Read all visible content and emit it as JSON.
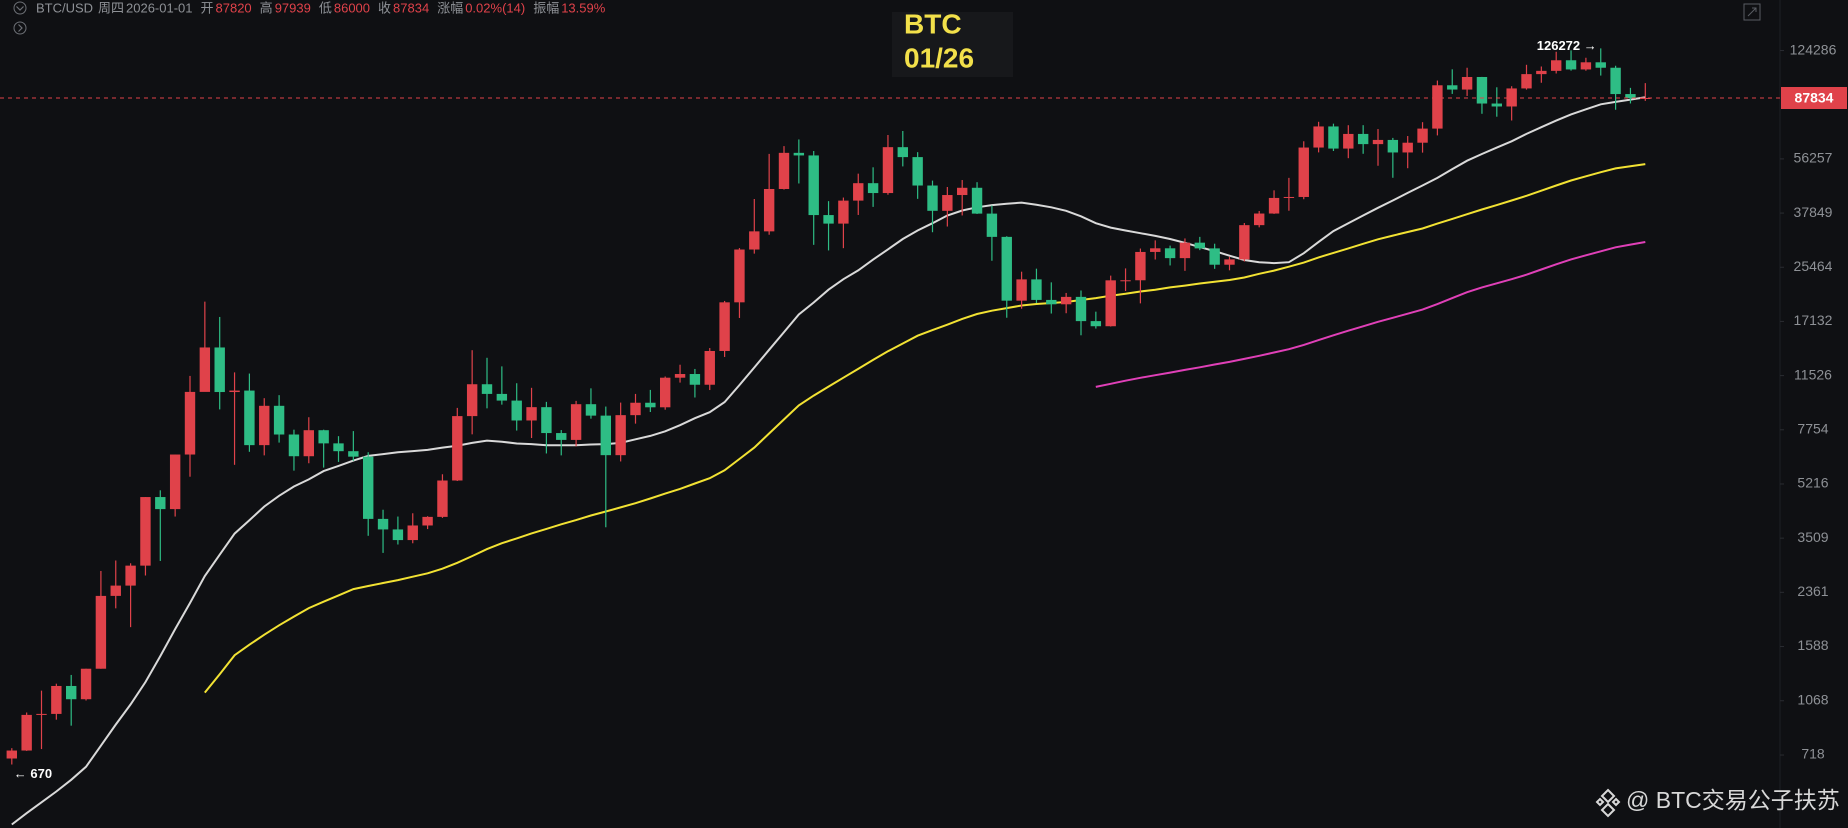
{
  "header": {
    "symbol": "BTC/USD",
    "weekday": "周四",
    "date": "2026-01-01",
    "fields": [
      {
        "label": "开",
        "value": 87820
      },
      {
        "label": "高",
        "value": 97939
      },
      {
        "label": "低",
        "value": 86000
      },
      {
        "label": "收",
        "value": 87834
      },
      {
        "label": "涨幅",
        "value": "0.02%(14)"
      },
      {
        "label": "振幅",
        "value": "13.59%"
      }
    ]
  },
  "overlay": {
    "line1": "BTC",
    "line2": "01/26"
  },
  "watermark": "@ BTC交易公子扶苏",
  "chart_data": {
    "type": "candlestick",
    "log_scale": true,
    "ylim": [
      421,
      179900
    ],
    "yticks": [
      718,
      1068,
      1588,
      2361,
      3509,
      5216,
      7754,
      11526,
      17132,
      25464,
      37849,
      56257,
      124286
    ],
    "up_color": "#e0424a",
    "down_color": "#2ebd85",
    "last_price": 87834,
    "last_price_color": "#e0424a",
    "max_label": "126272 →",
    "min_label": "← 670",
    "ohlc": [
      [
        700,
        755,
        670,
        742
      ],
      [
        742,
        980,
        740,
        963
      ],
      [
        963,
        1150,
        750,
        970
      ],
      [
        970,
        1210,
        930,
        1190
      ],
      [
        1190,
        1290,
        890,
        1080
      ],
      [
        1080,
        1350,
        1070,
        1350
      ],
      [
        1350,
        2760,
        1350,
        2300
      ],
      [
        2300,
        2980,
        2100,
        2480
      ],
      [
        2480,
        2920,
        1830,
        2870
      ],
      [
        2870,
        4740,
        2670,
        4740
      ],
      [
        4740,
        4980,
        2970,
        4340
      ],
      [
        4340,
        6470,
        4110,
        6470
      ],
      [
        6470,
        11500,
        5500,
        10230
      ],
      [
        10230,
        19800,
        10800,
        14160
      ],
      [
        14160,
        17700,
        9000,
        10220
      ],
      [
        10220,
        11800,
        6000,
        10330
      ],
      [
        10330,
        11700,
        6600,
        6930
      ],
      [
        6930,
        9770,
        6430,
        9240
      ],
      [
        9240,
        9990,
        7060,
        7490
      ],
      [
        7490,
        7760,
        5750,
        6390
      ],
      [
        6390,
        8500,
        6070,
        7730
      ],
      [
        7730,
        7760,
        5880,
        7020
      ],
      [
        7020,
        7400,
        6130,
        6630
      ],
      [
        6630,
        7680,
        6180,
        6370
      ],
      [
        6370,
        6580,
        3570,
        4040
      ],
      [
        4040,
        4320,
        3150,
        3740
      ],
      [
        3740,
        4110,
        3350,
        3460
      ],
      [
        3460,
        4210,
        3380,
        3850
      ],
      [
        3850,
        4120,
        3750,
        4100
      ],
      [
        4100,
        5600,
        4070,
        5350
      ],
      [
        5350,
        9100,
        5330,
        8570
      ],
      [
        8570,
        13880,
        7500,
        10820
      ],
      [
        10820,
        13130,
        9070,
        10080
      ],
      [
        10080,
        12330,
        9320,
        9600
      ],
      [
        9600,
        10900,
        7710,
        8300
      ],
      [
        8300,
        10540,
        7300,
        9150
      ],
      [
        9150,
        9510,
        6520,
        7570
      ],
      [
        7570,
        7740,
        6430,
        7200
      ],
      [
        7200,
        9580,
        6870,
        9350
      ],
      [
        9350,
        10500,
        8410,
        8600
      ],
      [
        8600,
        9190,
        3800,
        6440
      ],
      [
        6440,
        9460,
        6150,
        8630
      ],
      [
        8630,
        10080,
        8110,
        9450
      ],
      [
        9450,
        10380,
        8830,
        9140
      ],
      [
        9140,
        11450,
        8980,
        11350
      ],
      [
        11350,
        12480,
        10950,
        11660
      ],
      [
        11660,
        12100,
        9820,
        10780
      ],
      [
        10780,
        14100,
        10370,
        13800
      ],
      [
        13800,
        19900,
        13210,
        19700
      ],
      [
        19700,
        29300,
        17570,
        28990
      ],
      [
        28990,
        41950,
        28130,
        33110
      ],
      [
        33110,
        58350,
        32300,
        45140
      ],
      [
        45140,
        61780,
        44950,
        58800
      ],
      [
        58800,
        64850,
        47000,
        57700
      ],
      [
        57700,
        59600,
        30000,
        37300
      ],
      [
        37300,
        41300,
        28800,
        35040
      ],
      [
        35040,
        42400,
        29280,
        41460
      ],
      [
        41460,
        50500,
        37330,
        47100
      ],
      [
        47100,
        52900,
        39600,
        43820
      ],
      [
        43820,
        67000,
        43280,
        61300
      ],
      [
        61300,
        69000,
        53250,
        57000
      ],
      [
        57000,
        59100,
        42000,
        46300
      ],
      [
        46300,
        48000,
        32900,
        38480
      ],
      [
        38480,
        45800,
        34300,
        43190
      ],
      [
        43190,
        48200,
        37200,
        45540
      ],
      [
        45540,
        47450,
        37600,
        37700
      ],
      [
        37700,
        40000,
        26700,
        31800
      ],
      [
        31800,
        31950,
        17600,
        19940
      ],
      [
        19940,
        24650,
        18800,
        23300
      ],
      [
        23300,
        25200,
        19600,
        20050
      ],
      [
        20050,
        22800,
        18150,
        19420
      ],
      [
        19420,
        21100,
        18190,
        20500
      ],
      [
        20500,
        21480,
        15480,
        17170
      ],
      [
        17170,
        18400,
        16260,
        16540
      ],
      [
        16540,
        23950,
        16500,
        23140
      ],
      [
        23140,
        25250,
        21400,
        23150
      ],
      [
        23150,
        29200,
        19550,
        28480
      ],
      [
        28480,
        31000,
        26950,
        29250
      ],
      [
        29250,
        29830,
        25800,
        27220
      ],
      [
        27220,
        31440,
        24800,
        30480
      ],
      [
        30480,
        31800,
        28860,
        29230
      ],
      [
        29230,
        30250,
        25170,
        25940
      ],
      [
        25940,
        27480,
        24900,
        26970
      ],
      [
        26970,
        35200,
        26560,
        34650
      ],
      [
        34650,
        38430,
        34100,
        37720
      ],
      [
        37720,
        44700,
        37620,
        42280
      ],
      [
        42280,
        48970,
        38500,
        42580
      ],
      [
        42580,
        64000,
        41880,
        61130
      ],
      [
        61130,
        73800,
        59000,
        71330
      ],
      [
        71330,
        72800,
        59600,
        60670
      ],
      [
        60670,
        71980,
        56550,
        67530
      ],
      [
        67530,
        72000,
        58400,
        62680
      ],
      [
        62680,
        70000,
        53500,
        64630
      ],
      [
        64630,
        65600,
        49000,
        58970
      ],
      [
        58970,
        66500,
        52550,
        63330
      ],
      [
        63330,
        73600,
        58900,
        70220
      ],
      [
        70220,
        99800,
        66800,
        96400
      ],
      [
        96400,
        108350,
        90500,
        93430
      ],
      [
        93430,
        109590,
        89160,
        102430
      ],
      [
        102430,
        102500,
        78250,
        84350
      ],
      [
        84350,
        95000,
        76600,
        82550
      ],
      [
        82550,
        95750,
        74500,
        94200
      ],
      [
        94200,
        111980,
        93400,
        104600
      ],
      [
        104600,
        110600,
        98200,
        107130
      ],
      [
        107130,
        123200,
        105100,
        115760
      ],
      [
        115760,
        124460,
        107300,
        108240
      ],
      [
        108240,
        117900,
        107250,
        114050
      ],
      [
        114050,
        126272,
        103500,
        109600
      ],
      [
        109600,
        111200,
        80600,
        90400
      ],
      [
        90400,
        94600,
        84400,
        87800
      ],
      [
        87820,
        97939,
        86000,
        87834
      ]
    ],
    "series": [
      {
        "color": "#d9d9d9",
        "values": [
          432,
          469,
          508,
          550,
          599,
          659,
          769,
          898,
          1040,
          1225,
          1481,
          1805,
          2183,
          2661,
          3108,
          3628,
          4002,
          4423,
          4782,
          5121,
          5392,
          5730,
          5952,
          6189,
          6405,
          6491,
          6577,
          6634,
          6692,
          6807,
          6900,
          7044,
          7166,
          7108,
          7015,
          6985,
          6922,
          6922,
          6922,
          6960,
          6985,
          7044,
          7230,
          7417,
          7668,
          8020,
          8437,
          8817,
          9492,
          10748,
          12228,
          13922,
          15846,
          18022,
          19673,
          21612,
          23335,
          24886,
          26925,
          29007,
          31305,
          33315,
          35153,
          37192,
          38557,
          39490,
          40136,
          40495,
          40860,
          40208,
          39490,
          38485,
          36977,
          35153,
          34033,
          33315,
          32669,
          32023,
          31305,
          30443,
          29510,
          28648,
          27715,
          26853,
          26422,
          26243,
          26422,
          28217,
          30659,
          33172,
          35110,
          37192,
          39346,
          41500,
          43870,
          46311,
          48968,
          52199,
          55501,
          58302,
          61102,
          63974,
          67564,
          70938,
          74457,
          77903,
          80847,
          83862,
          85370,
          86806,
          88314
        ]
      },
      {
        "color": "#f2e233",
        "values": [
          null,
          null,
          null,
          null,
          null,
          null,
          null,
          null,
          null,
          null,
          null,
          null,
          null,
          1134,
          1297,
          1490,
          1609,
          1731,
          1855,
          1977,
          2104,
          2204,
          2309,
          2417,
          2473,
          2527,
          2582,
          2647,
          2714,
          2807,
          2930,
          3077,
          3238,
          3382,
          3504,
          3633,
          3755,
          3884,
          4006,
          4143,
          4265,
          4394,
          4531,
          4689,
          4861,
          5033,
          5234,
          5442,
          5766,
          6261,
          6807,
          7546,
          8365,
          9269,
          9959,
          10633,
          11352,
          12105,
          12931,
          13771,
          14575,
          15437,
          16083,
          16729,
          17447,
          18094,
          18524,
          18883,
          19242,
          19458,
          19601,
          19745,
          20032,
          20319,
          20678,
          20966,
          21325,
          21612,
          21971,
          22258,
          22617,
          22904,
          23191,
          23622,
          24268,
          24843,
          25561,
          26351,
          27356,
          28289,
          29223,
          30228,
          31233,
          32095,
          32956,
          33818,
          35038,
          36259,
          37551,
          38844,
          40136,
          41500,
          42936,
          44588,
          46311,
          48034,
          49542,
          51050,
          52486,
          53347,
          54137
        ]
      },
      {
        "color": "#e040b8",
        "values": [
          null,
          null,
          null,
          null,
          null,
          null,
          null,
          null,
          null,
          null,
          null,
          null,
          null,
          null,
          null,
          null,
          null,
          null,
          null,
          null,
          null,
          null,
          null,
          null,
          null,
          null,
          null,
          null,
          null,
          null,
          null,
          null,
          null,
          null,
          null,
          null,
          null,
          null,
          null,
          null,
          null,
          null,
          null,
          null,
          null,
          null,
          null,
          null,
          null,
          null,
          null,
          null,
          null,
          null,
          null,
          null,
          null,
          null,
          null,
          null,
          null,
          null,
          null,
          null,
          null,
          null,
          null,
          null,
          null,
          null,
          null,
          null,
          null,
          10612,
          10856,
          11107,
          11344,
          11560,
          11782,
          12019,
          12249,
          12500,
          12737,
          13025,
          13326,
          13649,
          13979,
          14425,
          14949,
          15480,
          16004,
          16536,
          17081,
          17598,
          18130,
          18682,
          19443,
          20319,
          21217,
          21971,
          22639,
          23335,
          24110,
          25044,
          26013,
          26968,
          27787,
          28605,
          29474,
          30063,
          30637
        ]
      }
    ]
  }
}
